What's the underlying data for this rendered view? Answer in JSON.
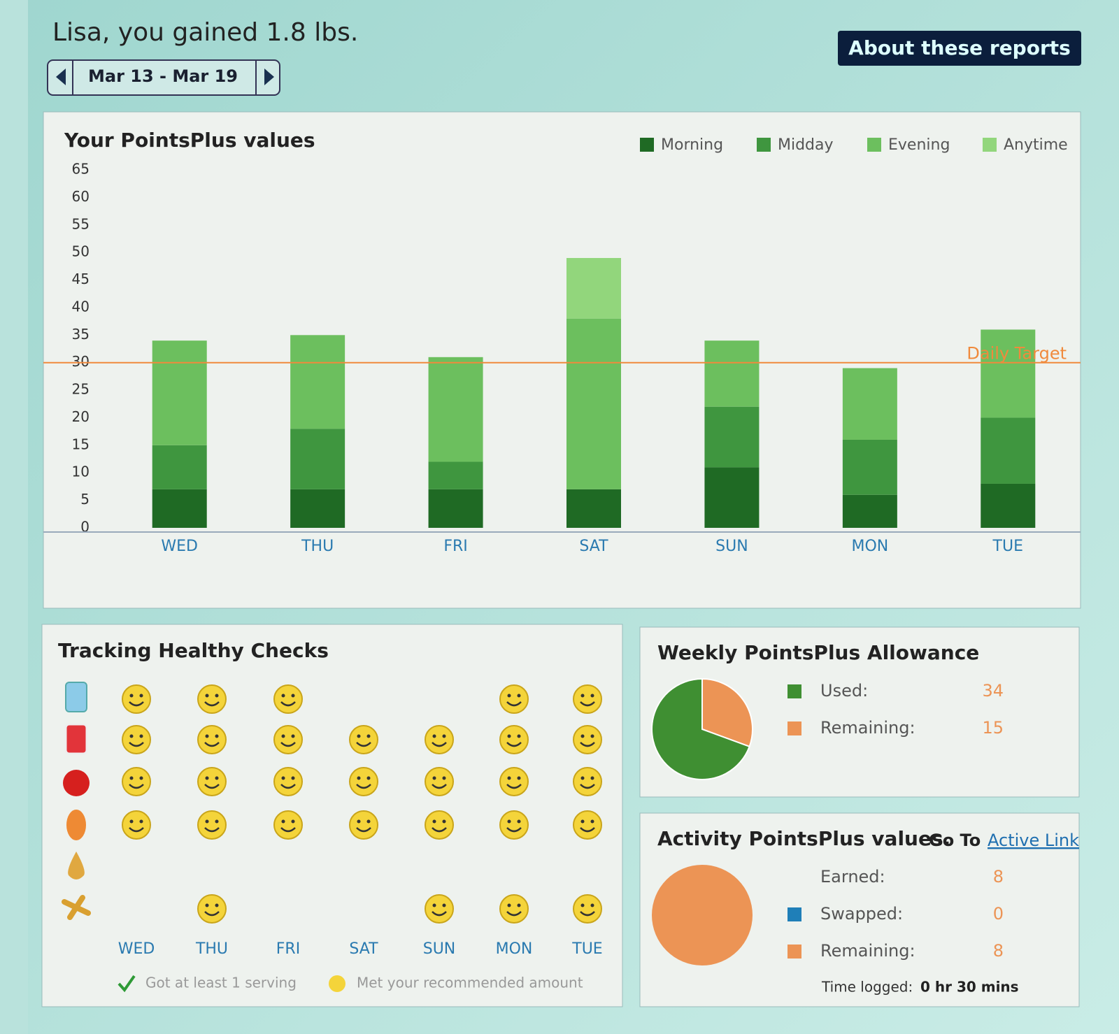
{
  "header": {
    "title": "Lisa, you gained 1.8 lbs.",
    "date_range": "Mar 13 - Mar 19",
    "about_button": "About these reports"
  },
  "chart_data": [
    {
      "type": "stacked_bar",
      "title": "Your PointsPlus values",
      "categories": [
        "WED",
        "THU",
        "FRI",
        "SAT",
        "SUN",
        "MON",
        "TUE"
      ],
      "series": [
        {
          "name": "Morning",
          "color": "#1f6a24",
          "values": [
            7,
            7,
            7,
            7,
            11,
            6,
            8
          ]
        },
        {
          "name": "Midday",
          "color": "#3f963f",
          "values": [
            8,
            11,
            5,
            0,
            11,
            10,
            12
          ]
        },
        {
          "name": "Evening",
          "color": "#6cbf5e",
          "values": [
            19,
            17,
            19,
            31,
            12,
            13,
            16
          ]
        },
        {
          "name": "Anytime",
          "color": "#92d67c",
          "values": [
            0,
            0,
            0,
            11,
            0,
            0,
            0
          ]
        }
      ],
      "ylim": [
        0,
        65
      ],
      "yticks": [
        0,
        5,
        10,
        15,
        20,
        25,
        30,
        35,
        40,
        45,
        50,
        55,
        60,
        65
      ],
      "target": {
        "label": "Daily Target",
        "value": 30,
        "color": "#f08a3c"
      },
      "legend": "top-right"
    },
    {
      "type": "pie",
      "title": "Weekly PointsPlus Allowance",
      "labels": [
        "Used:",
        "Remaining:"
      ],
      "values": [
        34,
        15
      ],
      "colors": [
        "#3f8f32",
        "#ec9455"
      ]
    },
    {
      "type": "pie",
      "title": "Activity PointsPlus values.",
      "link_prefix": "Go To",
      "link": "Active Link",
      "earned": {
        "label": "Earned:",
        "value": 8
      },
      "labels": [
        "Swapped:",
        "Remaining:"
      ],
      "values": [
        0,
        8
      ],
      "colors": [
        "#1f7fb8",
        "#ec9455"
      ],
      "time_logged": {
        "label": "Time logged:",
        "value": "0 hr 30 mins"
      }
    }
  ],
  "healthy_checks": {
    "title": "Tracking Healthy Checks",
    "days": [
      "WED",
      "THU",
      "FRI",
      "SAT",
      "SUN",
      "MON",
      "TUE"
    ],
    "rows": [
      [
        1,
        1,
        1,
        0,
        0,
        1,
        1
      ],
      [
        1,
        1,
        1,
        1,
        1,
        1,
        1
      ],
      [
        1,
        1,
        1,
        1,
        1,
        1,
        1
      ],
      [
        1,
        1,
        1,
        1,
        1,
        1,
        1
      ],
      [
        0,
        0,
        0,
        0,
        0,
        0,
        0
      ],
      [
        0,
        1,
        0,
        0,
        1,
        1,
        1
      ]
    ],
    "legend": {
      "serving": "Got at least 1 serving",
      "met": "Met your recommended amount"
    }
  }
}
